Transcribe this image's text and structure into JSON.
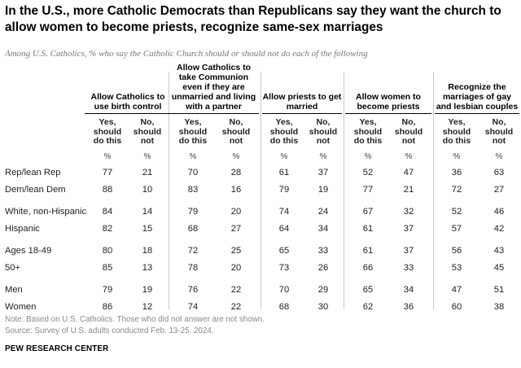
{
  "title": "In the U.S., more Catholic Democrats than Republicans say they want the church to allow women to become priests, recognize same-sex marriages",
  "subtitle": "Among U.S. Catholics, % who say the Catholic Church should or should not do each of the following",
  "chart_data": {
    "type": "table",
    "groups": [
      {
        "label": "Allow Catholics to use birth control"
      },
      {
        "label": "Allow Catholics to take Communion even if they are unmarried and living with a partner"
      },
      {
        "label": "Allow priests to get married"
      },
      {
        "label": "Allow women to become priests"
      },
      {
        "label": "Recognize the marriages of gay and lesbian couples"
      }
    ],
    "subheaders": [
      "Yes, should do this",
      "No, should not"
    ],
    "unit": "%",
    "rows": [
      {
        "label": "Rep/lean Rep",
        "values": [
          77,
          21,
          70,
          28,
          61,
          37,
          52,
          47,
          36,
          63
        ]
      },
      {
        "label": "Dem/lean Dem",
        "values": [
          88,
          10,
          83,
          16,
          79,
          19,
          77,
          21,
          72,
          27
        ]
      },
      {
        "label": "White, non-Hispanic",
        "values": [
          84,
          14,
          79,
          20,
          74,
          24,
          67,
          32,
          52,
          46
        ]
      },
      {
        "label": "Hispanic",
        "values": [
          82,
          15,
          68,
          27,
          64,
          34,
          61,
          37,
          57,
          42
        ]
      },
      {
        "label": "Ages 18-49",
        "values": [
          80,
          18,
          72,
          25,
          65,
          33,
          61,
          37,
          56,
          43
        ]
      },
      {
        "label": "50+",
        "values": [
          85,
          13,
          78,
          20,
          73,
          26,
          66,
          33,
          53,
          45
        ]
      },
      {
        "label": "Men",
        "values": [
          79,
          19,
          76,
          22,
          70,
          29,
          65,
          34,
          47,
          51
        ]
      },
      {
        "label": "Women",
        "values": [
          86,
          12,
          74,
          22,
          68,
          30,
          62,
          36,
          60,
          38
        ]
      }
    ]
  },
  "notes": {
    "note": "Note: Based on U.S. Catholics. Those who did not answer are not shown.",
    "source": "Source: Survey of U.S. adults conducted Feb. 13-25, 2024."
  },
  "brand": "PEW RESEARCH CENTER",
  "colors": {
    "text": "#222222",
    "muted": "#888888",
    "separator": "#c8c8c8"
  }
}
